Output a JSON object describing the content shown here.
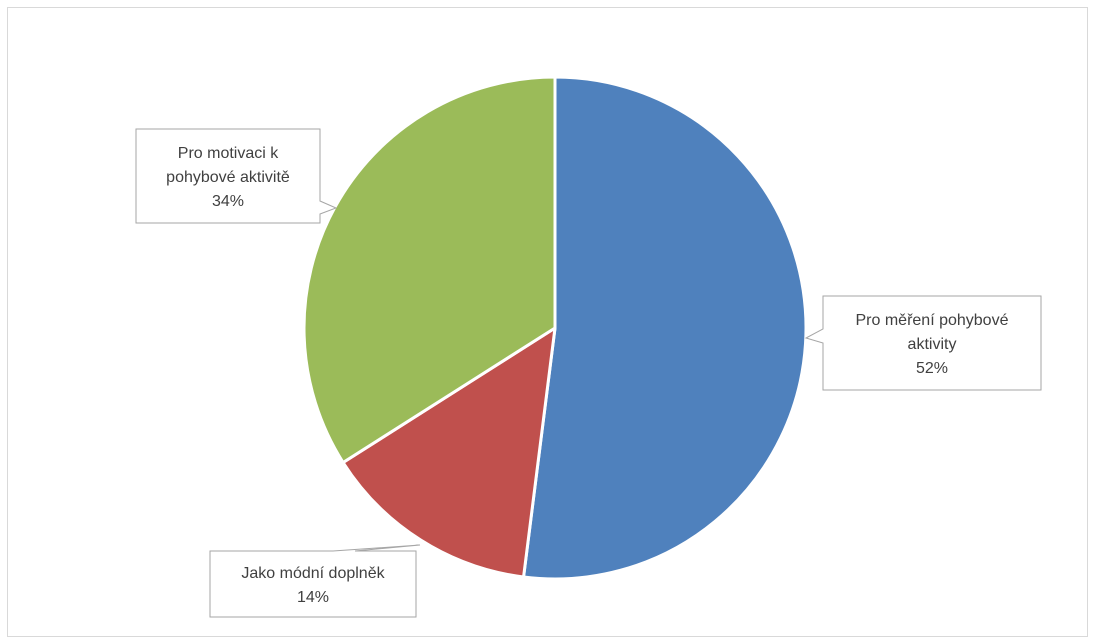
{
  "chart_data": {
    "type": "pie",
    "title": "",
    "slices": [
      {
        "label_lines": [
          "Pro měření pohybové",
          "aktivity"
        ],
        "percent_label": "52%",
        "value": 52,
        "color": "#4f81bd"
      },
      {
        "label_lines": [
          "Jako módní doplněk"
        ],
        "percent_label": "14%",
        "value": 14,
        "color": "#c0504d"
      },
      {
        "label_lines": [
          "Pro motivaci k",
          "pohybové aktivitě"
        ],
        "percent_label": "34%",
        "value": 34,
        "color": "#9bbb59"
      }
    ],
    "start_angle_deg": 0,
    "direction": "clockwise",
    "legend": "none",
    "data_labels": "callouts"
  }
}
